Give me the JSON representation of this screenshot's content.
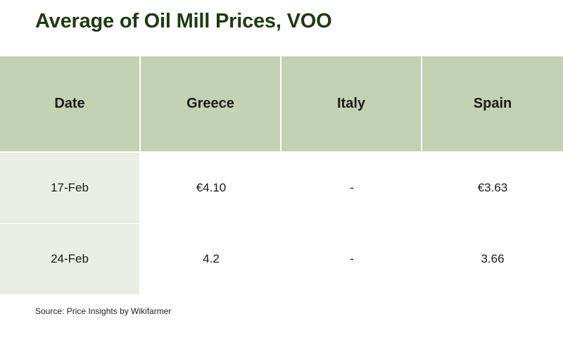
{
  "title": "Average of Oil Mill Prices, VOO",
  "source": "Source: Price Insights by Wikifarmer",
  "colors": {
    "title": "#1e3a12",
    "header_bg": "#c3d2b3",
    "date_col_bg": "#ebeee5"
  },
  "chart_data": {
    "type": "table",
    "title": "Average of Oil Mill Prices, VOO",
    "columns": [
      "Date",
      "Greece",
      "Italy",
      "Spain"
    ],
    "rows": [
      [
        "17-Feb",
        "€4.10",
        "-",
        "€3.63"
      ],
      [
        "24-Feb",
        "4.2",
        "-",
        "3.66"
      ]
    ]
  }
}
